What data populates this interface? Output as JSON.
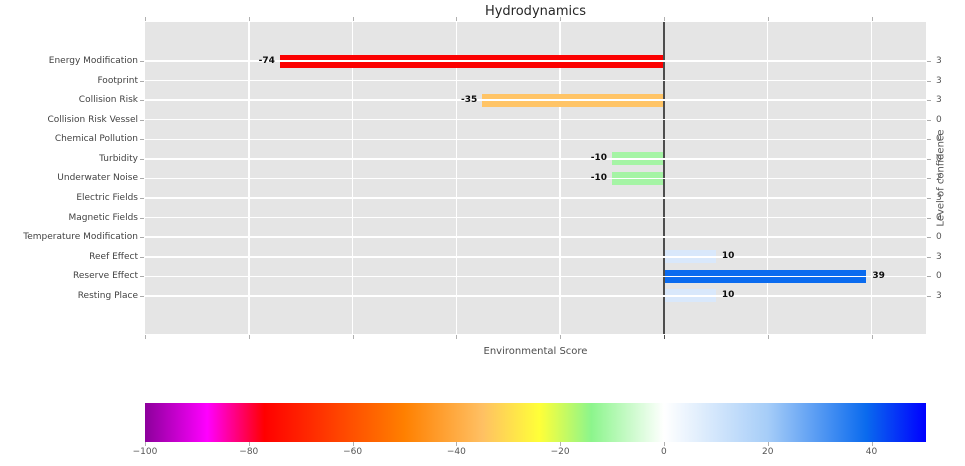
{
  "chart_data": {
    "type": "bar",
    "orientation": "horizontal",
    "title": "Hydrodynamics",
    "xlabel": "Environmental Score",
    "right_axis_label": "Level of confidence",
    "plot_background": "#e5e5e5",
    "grid": true,
    "x_axis": {
      "min": -100,
      "max": 50.5,
      "gridlines": [
        -100,
        -80,
        -60,
        -40,
        -20,
        0,
        20,
        40
      ],
      "zero_line": 0,
      "zero_line_color": "#4d4d4d",
      "tick_labels_shown": false
    },
    "categories": [
      "Energy Modification",
      "Footprint",
      "Collision Risk",
      "Collision Risk Vessel",
      "Chemical Pollution",
      "Turbidity",
      "Underwater Noise",
      "Electric Fields",
      "Magnetic Fields",
      "Temperature Modification",
      "Reef Effect",
      "Reserve Effect",
      "Resting Place"
    ],
    "values": [
      -74,
      null,
      -35,
      null,
      null,
      -10,
      -10,
      null,
      null,
      null,
      10,
      39,
      10
    ],
    "value_labels": [
      "-74",
      "",
      "-35",
      "",
      "",
      "-10",
      "-10",
      "",
      "",
      "",
      "10",
      "39",
      "10"
    ],
    "bar_colors": [
      "#fb0000",
      null,
      "#ffc466",
      null,
      null,
      "#a5f4a5",
      "#a5f4a5",
      null,
      null,
      null,
      "#d9e8fb",
      "#0a6bef",
      "#d9e8fb"
    ],
    "confidence_values": [
      "3",
      "3",
      "3",
      "0",
      "0",
      "0",
      "2",
      "3",
      "0",
      "0",
      "3",
      "0",
      "3"
    ],
    "colorbar": {
      "min": -100,
      "max": 50.5,
      "ticks": [
        {
          "value": -100,
          "label": "−100"
        },
        {
          "value": -80,
          "label": "−80"
        },
        {
          "value": -60,
          "label": "−60"
        },
        {
          "value": -40,
          "label": "−40"
        },
        {
          "value": -20,
          "label": "−20"
        },
        {
          "value": 0,
          "label": "0"
        },
        {
          "value": 20,
          "label": "20"
        },
        {
          "value": 40,
          "label": "40"
        }
      ],
      "gradient_stops": [
        {
          "value": -100,
          "color": "#8c009b"
        },
        {
          "value": -88,
          "color": "#ff00ff"
        },
        {
          "value": -77,
          "color": "#ff0000"
        },
        {
          "value": -69,
          "color": "#ff2600"
        },
        {
          "value": -50,
          "color": "#ff8000"
        },
        {
          "value": -35,
          "color": "#ffc063"
        },
        {
          "value": -24,
          "color": "#ffff38"
        },
        {
          "value": -14,
          "color": "#8cf58c"
        },
        {
          "value": 0,
          "color": "#ffffff"
        },
        {
          "value": 20,
          "color": "#a6cdf8"
        },
        {
          "value": 39,
          "color": "#0a6aee"
        },
        {
          "value": 50.5,
          "color": "#0000ff"
        }
      ]
    }
  }
}
